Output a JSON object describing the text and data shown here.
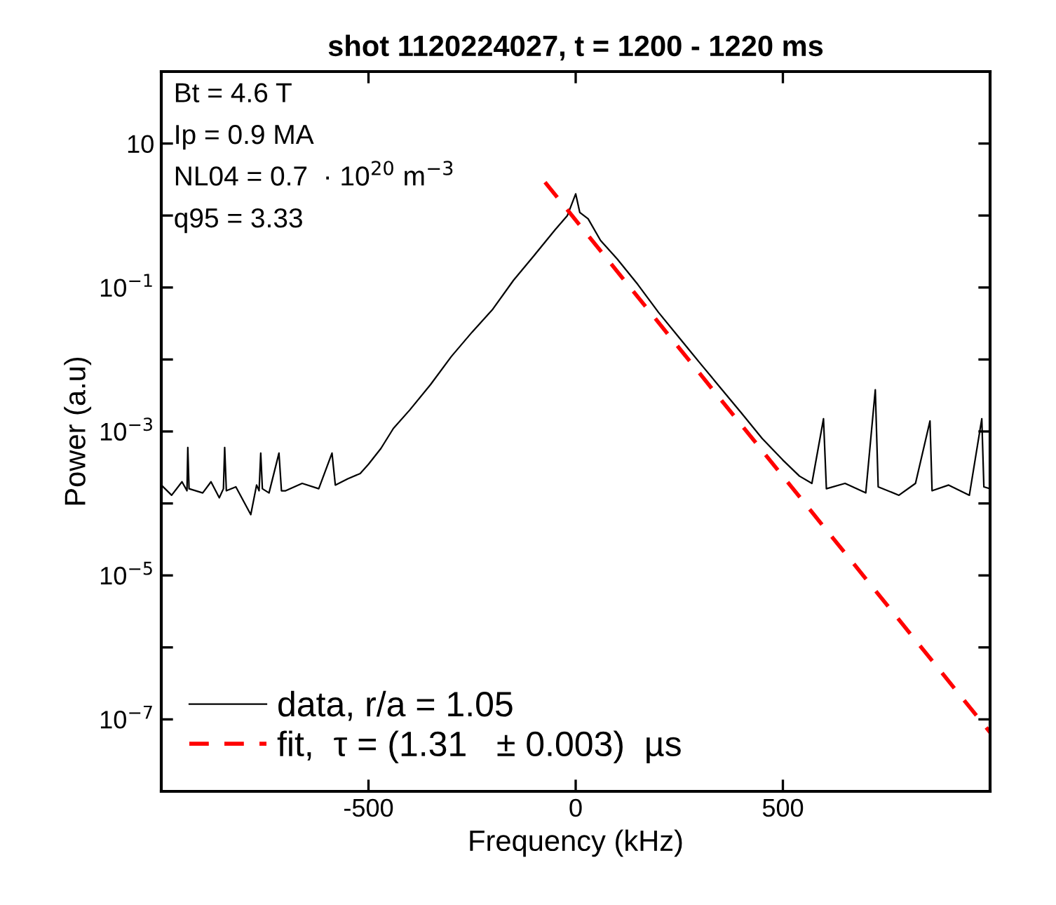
{
  "chart_data": {
    "type": "line",
    "title": "shot 1120224027, t = 1200 - 1220 ms",
    "xlabel": "Frequency (kHz)",
    "ylabel": "Power (a.u)",
    "annotations": [
      "Bt = 4.6 T",
      "Ip = 0.9 MA",
      "NL04 = 0.7  · 10$^{20}$ m$^{−3}$",
      "q95 = 3.33"
    ],
    "log": "y",
    "grid": false,
    "legend": "bottom left",
    "xlim": [
      -1000,
      1000
    ],
    "xticks": [
      -500,
      0,
      500
    ],
    "ylim": [
      1e-08,
      100
    ],
    "yticks": [
      {
        "value": 1e-08,
        "label": null
      },
      {
        "value": 1e-07,
        "label": "10$^{−7}$"
      },
      {
        "value": 1e-06,
        "label": null
      },
      {
        "value": 1e-05,
        "label": "10$^{−5}$"
      },
      {
        "value": 0.0001,
        "label": null
      },
      {
        "value": 0.001,
        "label": "10$^{−3}$"
      },
      {
        "value": 0.01,
        "label": null
      },
      {
        "value": 0.1,
        "label": "10$^{−1}$"
      },
      {
        "value": 1,
        "label": null
      },
      {
        "value": 10,
        "label": "10"
      },
      {
        "value": 100,
        "label": null
      }
    ],
    "series": [
      {
        "name": "data, r/a = 1.05",
        "color": "#000000",
        "line_style": "solid",
        "x": [
          -1000,
          -975,
          -950,
          -938,
          -936,
          -933,
          -900,
          -880,
          -860,
          -850,
          -847,
          -843,
          -820,
          -784,
          -770,
          -764,
          -760,
          -756,
          -740,
          -716,
          -710,
          -700,
          -660,
          -620,
          -588,
          -580,
          -550,
          -520,
          -500,
          -470,
          -440,
          -400,
          -350,
          -300,
          -250,
          -200,
          -150,
          -100,
          -50,
          -20,
          0,
          10,
          30,
          60,
          100,
          150,
          200,
          250,
          300,
          350,
          400,
          450,
          500,
          540,
          570,
          598,
          605,
          650,
          700,
          723,
          730,
          780,
          820,
          855,
          860,
          900,
          950,
          980,
          985,
          1000
        ],
        "values": [
          0.00018,
          0.00013,
          0.0002,
          0.00015,
          0.0006,
          0.00016,
          0.00014,
          0.0002,
          0.00012,
          0.00016,
          0.0006,
          0.00015,
          0.00017,
          7e-05,
          0.00018,
          0.00015,
          0.0005,
          0.00016,
          0.00014,
          0.0005,
          0.00015,
          0.00015,
          0.00019,
          0.00016,
          0.0005,
          0.00018,
          0.00022,
          0.00026,
          0.00035,
          0.00058,
          0.0011,
          0.002,
          0.0045,
          0.011,
          0.024,
          0.05,
          0.126,
          0.28,
          0.63,
          1.0,
          2.0,
          1.1,
          0.9,
          0.45,
          0.25,
          0.11,
          0.045,
          0.02,
          0.0089,
          0.004,
          0.0018,
          0.0008,
          0.0004,
          0.00024,
          0.00019,
          0.0015,
          0.00016,
          0.00019,
          0.00014,
          0.0038,
          0.00017,
          0.00013,
          0.00019,
          0.0014,
          0.00015,
          0.00018,
          0.00013,
          0.0015,
          0.00017,
          0.00016
        ]
      },
      {
        "name": "fit,  τ = (1.31   ± 0.003)  µs",
        "color": "#ff0000",
        "line_style": "dashed",
        "x": [
          -74,
          1000
        ],
        "values": [
          2.9,
          6.6e-08
        ]
      }
    ]
  }
}
